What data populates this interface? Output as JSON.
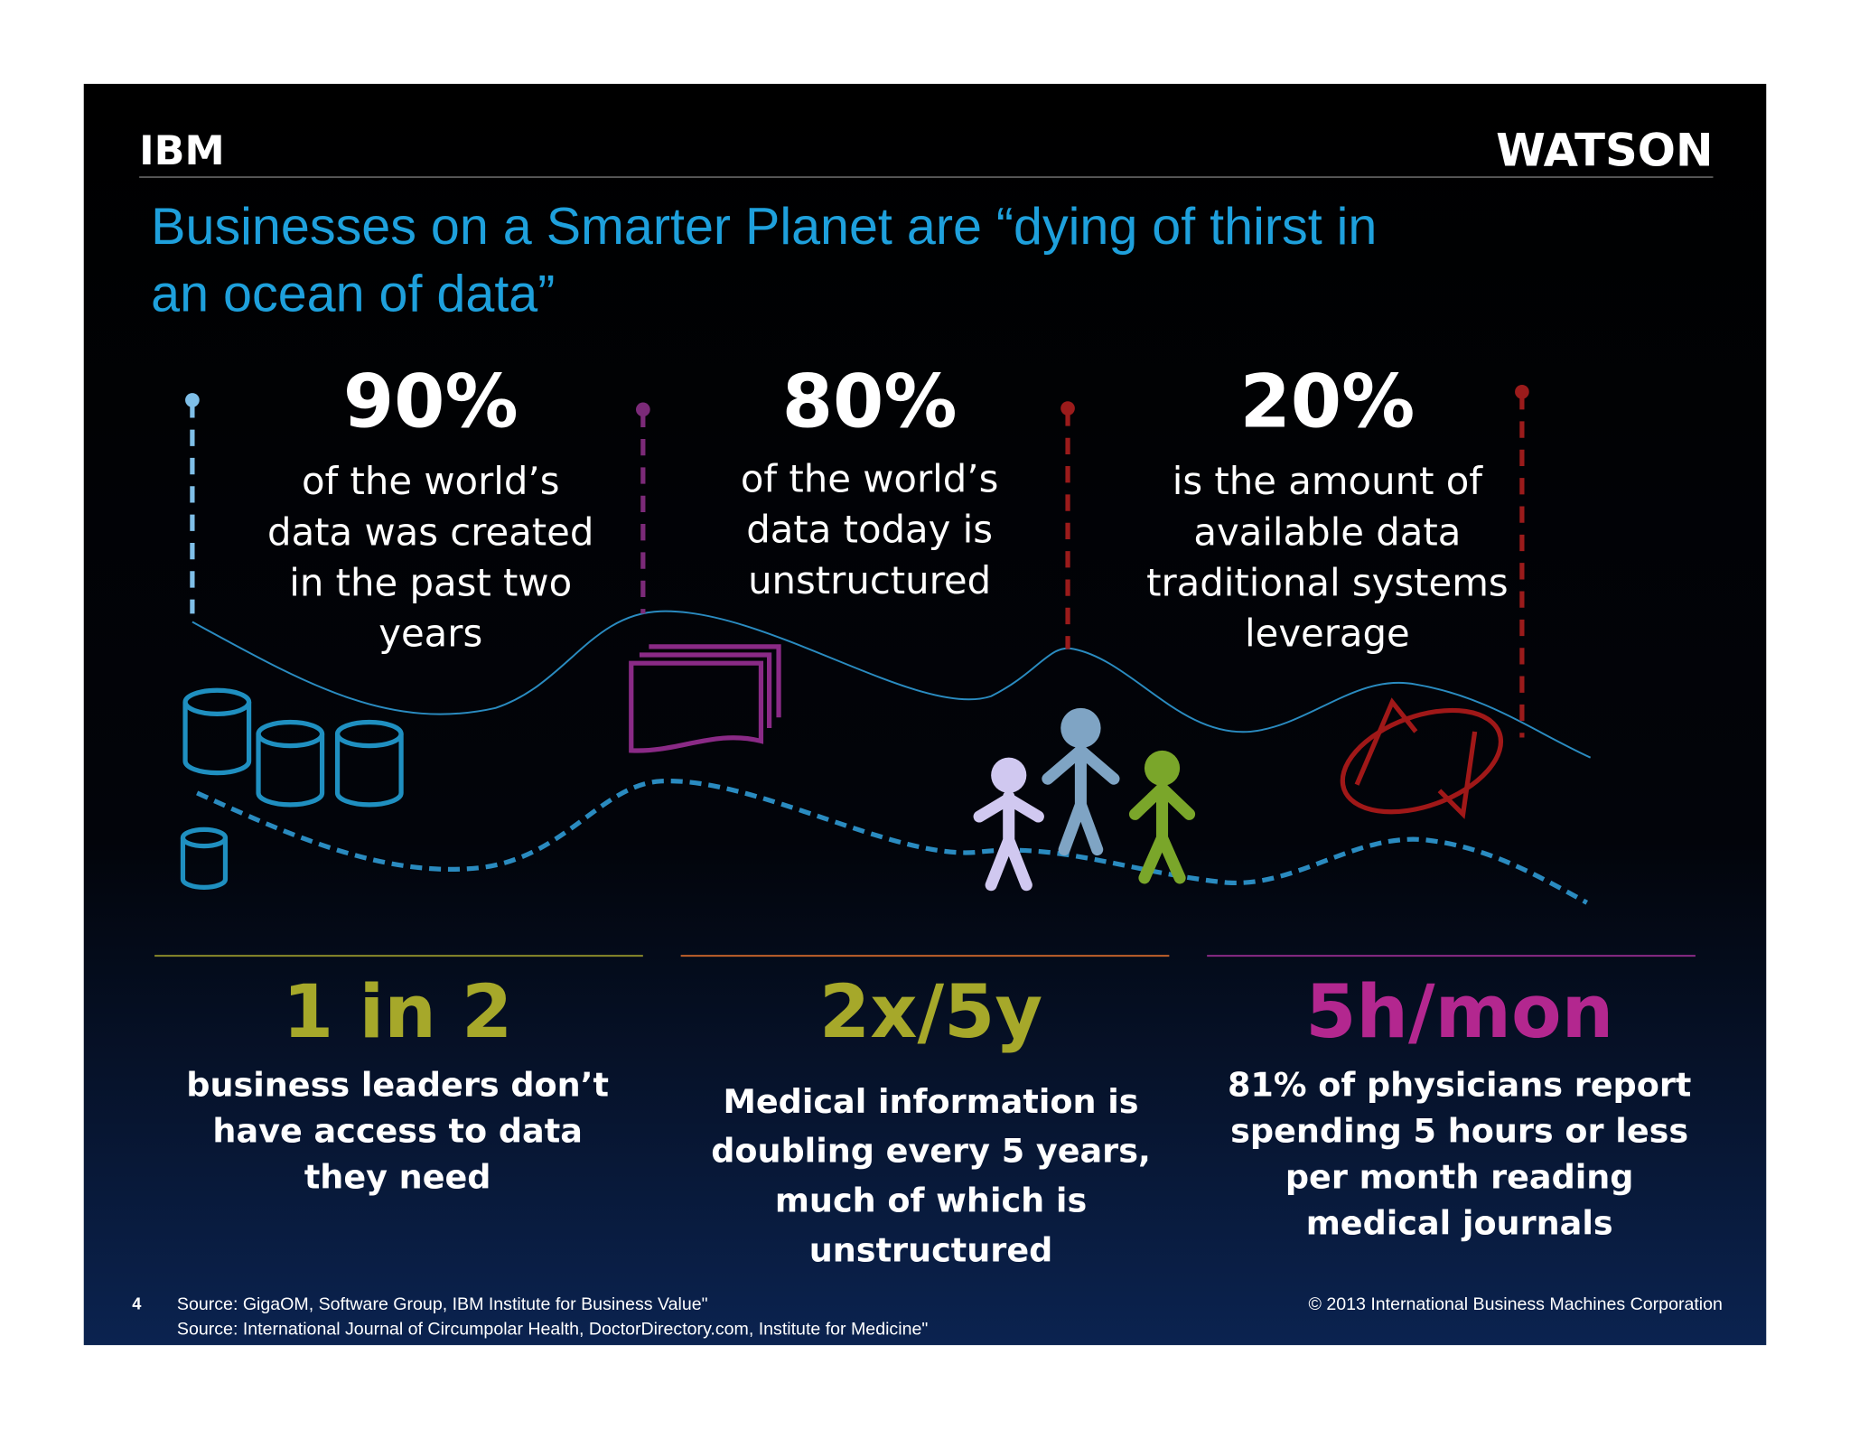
{
  "header": {
    "logo": "IBM",
    "brand": "WATSON"
  },
  "title": [
    "Businesses on a Smarter Planet are “dying of thirst in",
    "an ocean of data”"
  ],
  "top_stats": [
    {
      "value": "90%",
      "text": [
        "of the world’s",
        "data was created",
        "in the past two",
        "years"
      ]
    },
    {
      "value": "80%",
      "text": [
        "of the world’s",
        "data today is",
        "unstructured"
      ]
    },
    {
      "value": "20%",
      "text": [
        "is the amount of",
        "available data",
        "traditional systems",
        "leverage"
      ]
    }
  ],
  "bottom_stats": [
    {
      "value": "1 in 2",
      "text": [
        "business leaders don’t",
        "have access to data",
        "they need"
      ]
    },
    {
      "value": "2x/5y",
      "text": [
        "Medical information is",
        "doubling every 5 years,",
        "much of which is",
        "unstructured"
      ]
    },
    {
      "value": "5h/mon",
      "text": [
        "81% of physicians report",
        "spending 5 hours or less",
        "per month reading",
        "medical journals"
      ]
    }
  ],
  "footer": {
    "page_number": "4",
    "sources": [
      "Source: GigaOM, Software Group, IBM Institute for Business Value\"",
      "Source: International Journal of Circumpolar Health, DoctorDirectory.com, Institute for Medicine\""
    ],
    "copyright": "© 2013 International Business Machines Corporation"
  }
}
